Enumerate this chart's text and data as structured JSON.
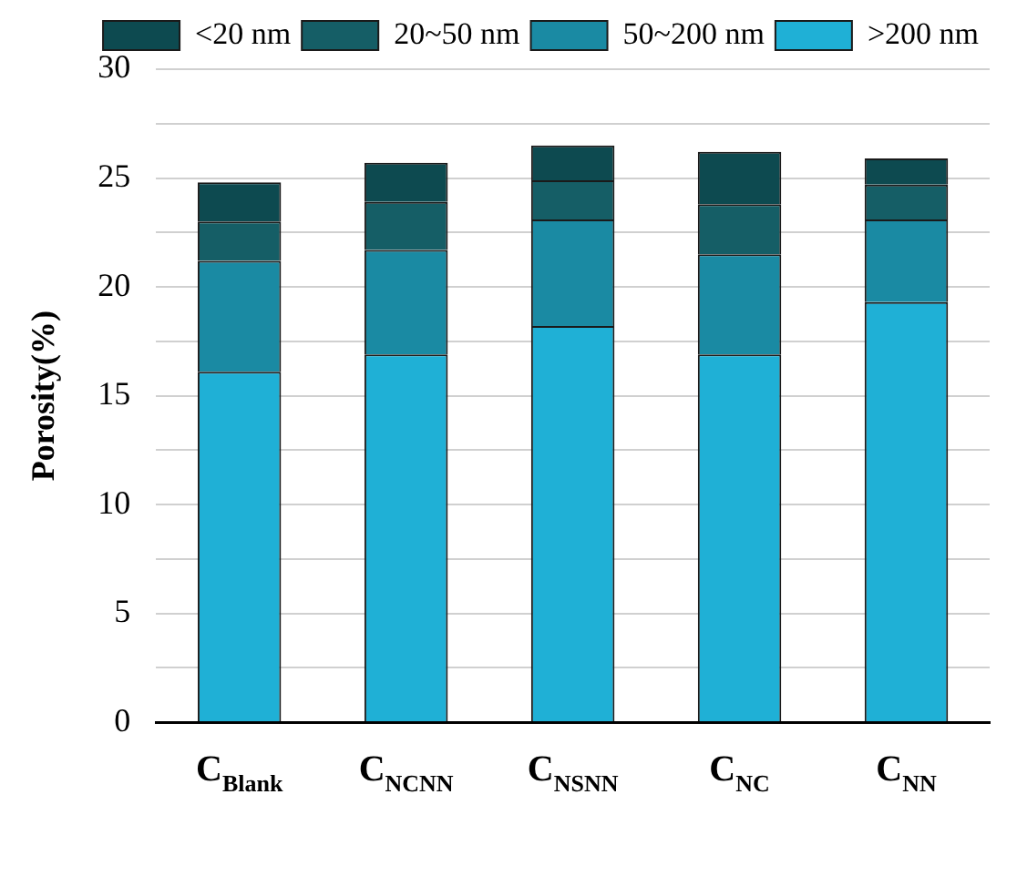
{
  "chart_data": {
    "type": "bar",
    "stacked": true,
    "ylabel": "Porosity(%)",
    "categories": [
      "C$_{Blank}$",
      "C$_{NCNN}$",
      "C$_{NSNN}$",
      "C$_{NC}$",
      "C$_{NN}$"
    ],
    "series": [
      {
        "name": ">200 nm",
        "color": "#1fb0d6",
        "values": [
          16.1,
          16.9,
          18.2,
          16.9,
          19.3
        ]
      },
      {
        "name": "50~200 nm",
        "color": "#1a8aa3",
        "values": [
          5.1,
          4.8,
          4.9,
          4.6,
          3.8
        ]
      },
      {
        "name": "20~50 nm",
        "color": "#155e66",
        "values": [
          1.8,
          2.2,
          1.8,
          2.3,
          1.6
        ]
      },
      {
        "name": "<20 nm",
        "color": "#0d4a50",
        "values": [
          1.8,
          1.8,
          1.6,
          2.4,
          1.2
        ]
      }
    ],
    "ylim": [
      0,
      30
    ],
    "yticks": [
      0,
      {
        "value": 2.5,
        "label": null
      },
      5,
      {
        "value": 7.5,
        "label": null
      },
      10,
      {
        "value": 12.5,
        "label": null
      },
      15,
      {
        "value": 17.5,
        "label": null
      },
      20,
      {
        "value": 22.5,
        "label": null
      },
      25,
      {
        "value": 27.5,
        "label": null
      },
      30
    ],
    "grid": "y",
    "legend": "top right"
  }
}
